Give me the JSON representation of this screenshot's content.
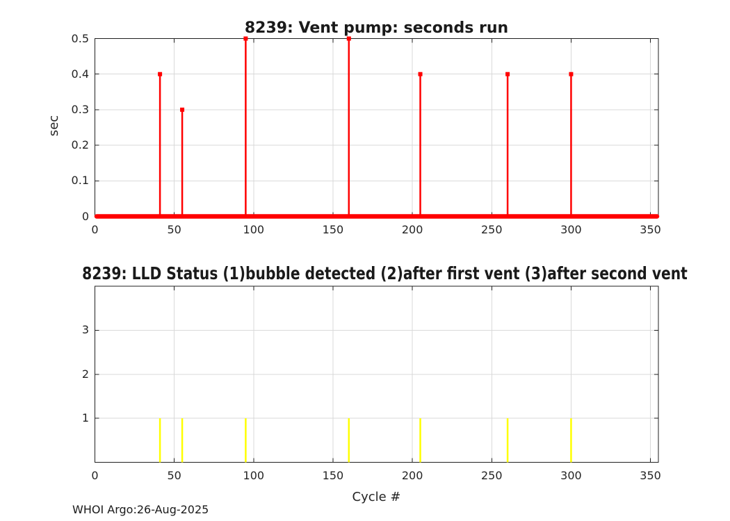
{
  "figure": {
    "footer": "WHOI Argo:26-Aug-2025",
    "background": "#ffffff"
  },
  "styles": {
    "grid_color": "#d9d9d9",
    "axis_color": "#1f1f1f",
    "text_color": "#242424",
    "stem_red": "#ff0000",
    "stem_yellow": "#ffff00"
  },
  "chart_data": [
    {
      "type": "stem",
      "title": "8239: Vent pump: seconds run",
      "ylabel": "sec",
      "xlabel": "",
      "xlim": [
        0,
        355
      ],
      "ylim": [
        0,
        0.5
      ],
      "xticks": [
        0,
        50,
        100,
        150,
        200,
        250,
        300,
        350
      ],
      "xtick_labels": [
        "0",
        "50",
        "100",
        "150",
        "200",
        "250",
        "300",
        "350"
      ],
      "yticks": [
        0,
        0.1,
        0.2,
        0.3,
        0.4,
        0.5
      ],
      "ytick_labels": [
        "0",
        "0.1",
        "0.2",
        "0.3",
        "0.4",
        "0.5"
      ],
      "grid": true,
      "legend": "none",
      "color": "#ff0000",
      "marker": "filled-square",
      "baseline_at_zero": true,
      "points": [
        {
          "x": 41,
          "y": 0.4
        },
        {
          "x": 55,
          "y": 0.3
        },
        {
          "x": 95,
          "y": 0.5
        },
        {
          "x": 160,
          "y": 0.5
        },
        {
          "x": 205,
          "y": 0.4
        },
        {
          "x": 260,
          "y": 0.4
        },
        {
          "x": 300,
          "y": 0.4
        }
      ]
    },
    {
      "type": "stem",
      "title": "8239: LLD Status   (1)bubble detected   (2)after first vent  (3)after second vent",
      "ylabel": "",
      "xlabel": "Cycle #",
      "xlim": [
        0,
        355
      ],
      "ylim": [
        0,
        4
      ],
      "xticks": [
        0,
        50,
        100,
        150,
        200,
        250,
        300,
        350
      ],
      "xtick_labels": [
        "0",
        "50",
        "100",
        "150",
        "200",
        "250",
        "300",
        "350"
      ],
      "yticks": [
        1,
        2,
        3
      ],
      "ytick_labels": [
        "1",
        "2",
        "3"
      ],
      "grid": true,
      "legend": "none",
      "color": "#ffff00",
      "marker": "none",
      "baseline_at_zero": false,
      "points": [
        {
          "x": 41,
          "y": 1
        },
        {
          "x": 55,
          "y": 1
        },
        {
          "x": 95,
          "y": 1
        },
        {
          "x": 160,
          "y": 1
        },
        {
          "x": 205,
          "y": 1
        },
        {
          "x": 260,
          "y": 1
        },
        {
          "x": 300,
          "y": 1
        }
      ]
    }
  ]
}
